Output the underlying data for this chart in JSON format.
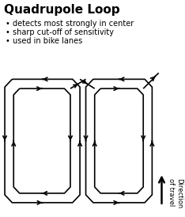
{
  "title": "Quadrupole Loop",
  "bullets": [
    "detects most strongly in center",
    "sharp cut-off of sensitivity",
    "used in bike lanes"
  ],
  "bg_color": "#ffffff",
  "line_color": "#000000",
  "title_fontsize": 11,
  "bullet_fontsize": 7,
  "lw": 1.2
}
